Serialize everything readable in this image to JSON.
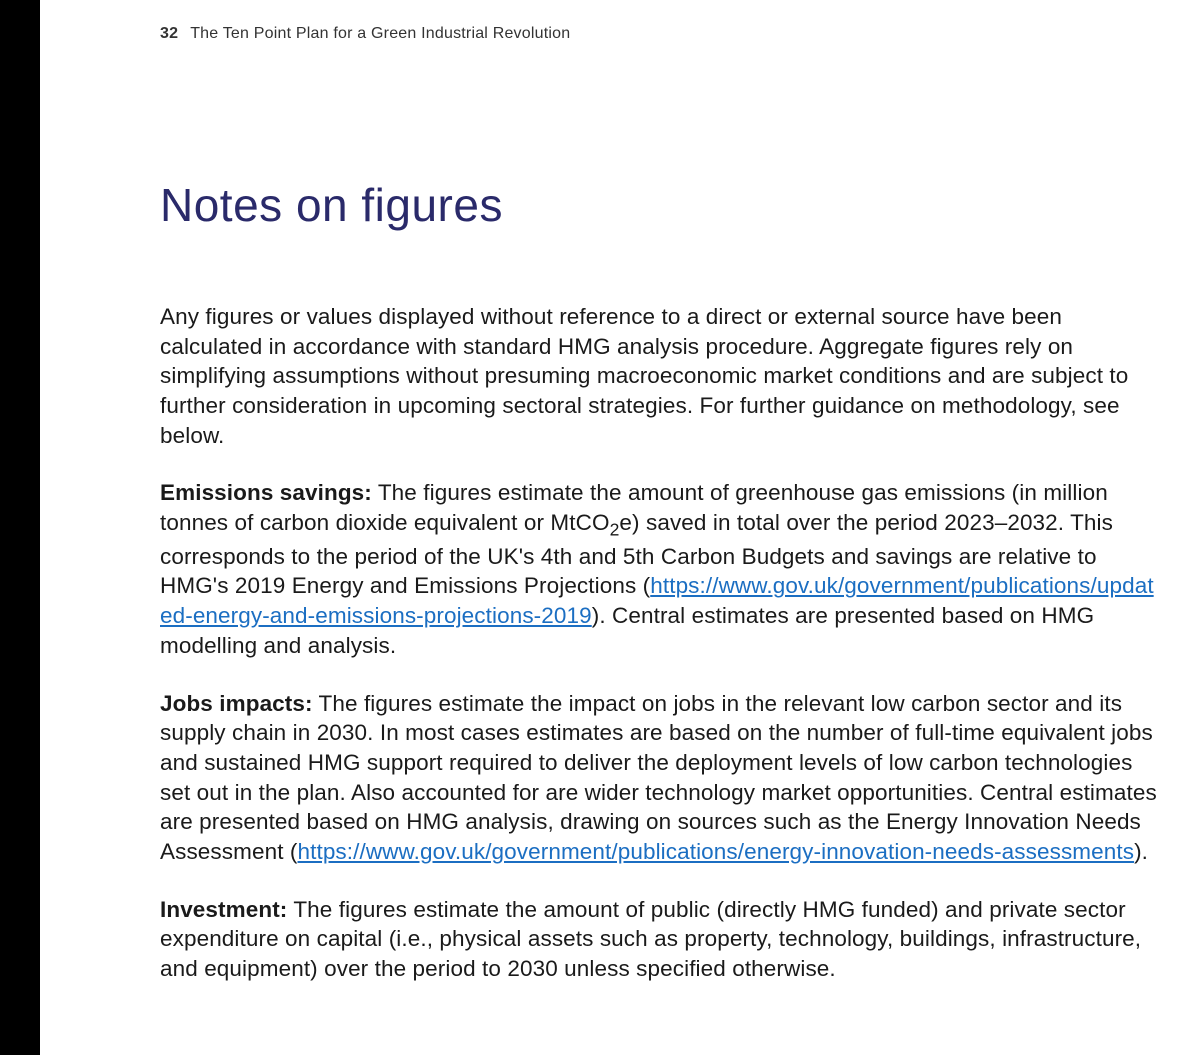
{
  "header": {
    "page_number": "32",
    "running_title": "The Ten Point Plan for a Green Industrial Revolution"
  },
  "title": "Notes on figures",
  "colors": {
    "heading": "#2a2a6a",
    "body_text": "#1a1a1a",
    "link": "#1b6ec2",
    "background": "#ffffff",
    "strip": "#000000"
  },
  "typography": {
    "heading_fontsize_pt": 34,
    "body_fontsize_pt": 17,
    "body_line_height": 1.32,
    "font_family": "Arial"
  },
  "paragraphs": {
    "intro": "Any figures or values displayed without reference to a direct or external source have been calculated in accordance with standard HMG analysis procedure. Aggregate figures rely on simplifying assumptions without presuming macroeconomic market conditions and are subject to further consideration in upcoming sectoral strategies. For further guidance on methodology, see below.",
    "emissions": {
      "lead": "Emissions savings:",
      "text_before_sub": " The figures estimate the amount of greenhouse gas emissions (in million tonnes of carbon dioxide equivalent or MtCO",
      "sub": "2",
      "text_after_sub": "e) saved in total over the period 2023–2032. This corresponds to the period of the UK's 4th and 5th Carbon Budgets and savings are relative to HMG's 2019 Energy and Emissions Projections (",
      "link_text": "https://www.gov.uk/government/publications/updated-energy-and-emissions-projections-2019",
      "text_after_link": "). Central estimates are presented based on HMG modelling and analysis."
    },
    "jobs": {
      "lead": "Jobs impacts:",
      "text_before_link": " The figures estimate the impact on jobs in the relevant low carbon sector and its supply chain in 2030. In most cases estimates are based on the number of full-time equivalent jobs and sustained HMG support required to deliver the deployment levels of low carbon technologies set out in the plan. Also accounted for are wider technology market opportunities. Central estimates are presented based on HMG analysis, drawing on sources such as the Energy Innovation Needs Assessment (",
      "link_text": "https://www.gov.uk/government/publications/energy-innovation-needs-assessments",
      "text_after_link": ")."
    },
    "investment": {
      "lead": "Investment:",
      "text": " The figures estimate the amount of public (directly HMG funded) and private sector expenditure on capital (i.e., physical assets such as property, technology, buildings, infrastructure, and equipment) over the period to 2030 unless specified otherwise."
    }
  }
}
